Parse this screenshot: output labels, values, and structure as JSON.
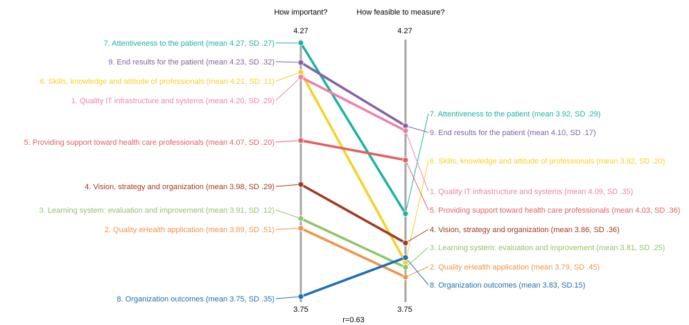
{
  "chart_data": {
    "type": "slope",
    "axes": [
      {
        "title": "How important?",
        "max_label": "4.27",
        "min_label": "3.75"
      },
      {
        "title": "How feasible to measure?",
        "max_label": "4.27",
        "min_label": "3.75"
      }
    ],
    "ylim": [
      3.75,
      4.27
    ],
    "footnote": "r=0.63",
    "series": [
      {
        "name": "7. Attentiveness to the patient",
        "color": "#1ab3a6",
        "left": 4.27,
        "right": 3.92,
        "left_label": "7. Attentiveness to the patient (mean 4.27, SD .27)",
        "right_label": "7. Attentiveness to the patient (mean 3.92, SD .29)"
      },
      {
        "name": "9. End results for the patient",
        "color": "#8064a2",
        "left": 4.23,
        "right": 4.1,
        "left_label": "9. End results for the patient (mean 4.23, SD .32)",
        "right_label": "9. End results for the patient (mean 4.10, SD .17)"
      },
      {
        "name": "6. Skills, knowledge and attitude of professionals",
        "color": "#f5d226",
        "left": 4.21,
        "right": 3.82,
        "left_label": "6. Skills, knowledge and attitude of professionals (mean 4.21, SD .11)",
        "right_label": "6. Skills, knowledge and attitude of  professionals (mean 3.82, SD .20)"
      },
      {
        "name": "1. Quality IT infrastructure and systems",
        "color": "#ee82a8",
        "left": 4.2,
        "right": 4.09,
        "left_label": "1. Quality IT infrastructure and systems (mean 4.20, SD .29)",
        "right_label": "1. Quality IT infrastructure and systems (mean 4.09, SD .35)"
      },
      {
        "name": "5. Providing support toward health care professionals",
        "color": "#e0625f",
        "left": 4.07,
        "right": 4.03,
        "left_label": "5. Providing support toward health care professionals (mean 4.07, SD .20)",
        "right_label": "5. Providing support toward health care professionals (mean 4.03, SD .36)"
      },
      {
        "name": "4. Vision, strategy and organization",
        "color": "#a23a1f",
        "left": 3.98,
        "right": 3.86,
        "left_label": "4. Vision, strategy and organization (mean 3.98, SD .29)",
        "right_label": "4. Vision, strategy and organization (mean 3.86, SD .36)"
      },
      {
        "name": "3. Learning system: evaluation and improvement",
        "color": "#8cc66a",
        "left": 3.91,
        "right": 3.81,
        "left_label": "3. Learning system: evaluation and improvement (mean 3.91, SD .12)",
        "right_label": "3. Learning system: evaluation and improvement (mean 3.81, SD .25)"
      },
      {
        "name": "2. Quality eHealth application",
        "color": "#f0934a",
        "left": 3.89,
        "right": 3.79,
        "left_label": "2. Quality eHealth application (mean 3.89, SD .51)",
        "right_label": "2. Quality eHealth application (mean 3.79, SD .45)"
      },
      {
        "name": "8. Organization outcomes",
        "color": "#1f6fb4",
        "left": 3.75,
        "right": 3.83,
        "left_label": "8. Organization outcomes (mean 3.75, SD .35)",
        "right_label": "8. Organization outcomes (mean 3.83, SD.15)"
      }
    ]
  }
}
